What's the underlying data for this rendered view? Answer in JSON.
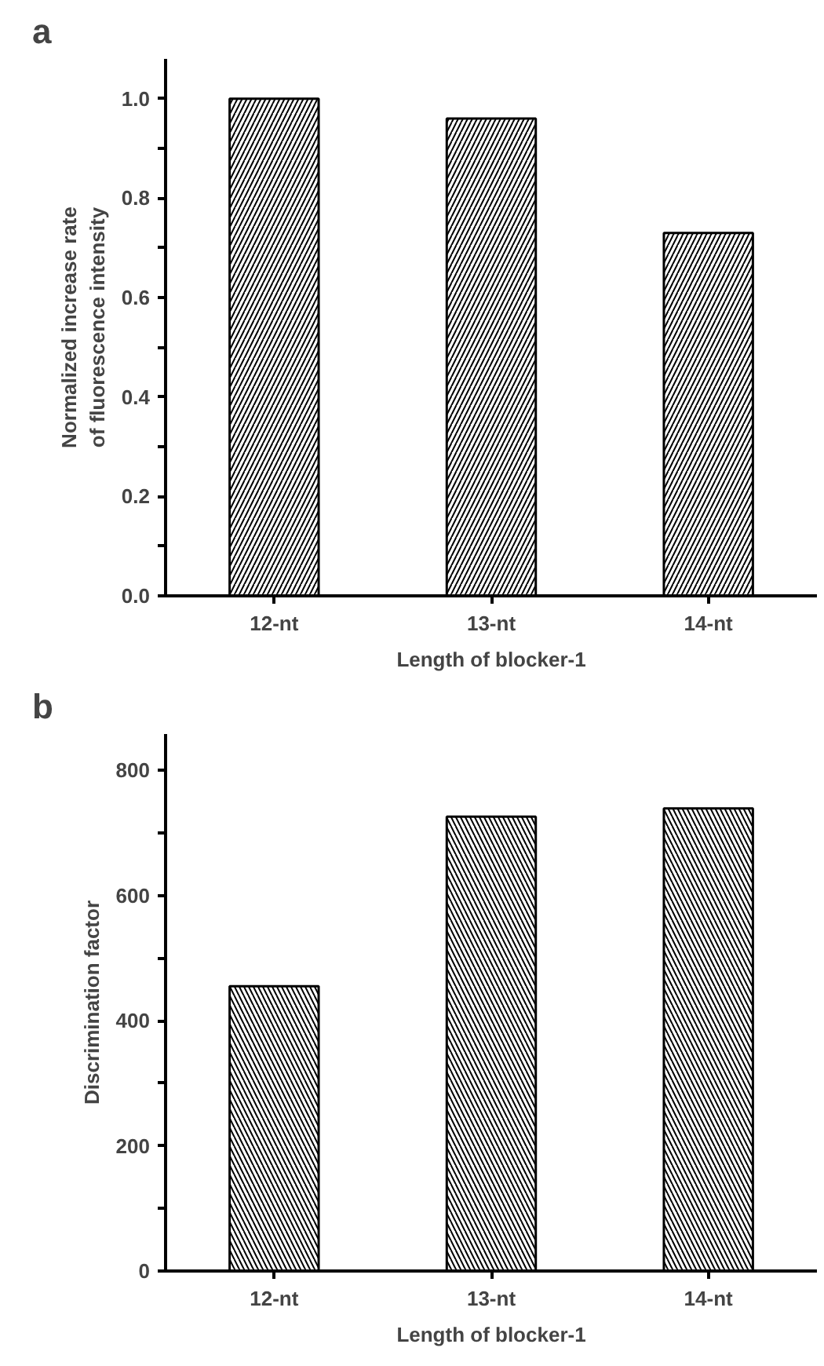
{
  "chart_data": [
    {
      "type": "bar",
      "title": "a",
      "xlabel": "Length of blocker-1",
      "ylabel": "Normalized increase rate\nof fluorescence intensity",
      "categories": [
        "12-nt",
        "13-nt",
        "14-nt"
      ],
      "values": [
        1.0,
        0.96,
        0.73
      ],
      "ylim": [
        0,
        1.08
      ],
      "yticks": [
        {
          "value": 0,
          "label": "0.0"
        },
        {
          "value": 0.1,
          "label": null
        },
        {
          "value": 0.2,
          "label": "0.2"
        },
        {
          "value": 0.3,
          "label": null
        },
        {
          "value": 0.4,
          "label": "0.4"
        },
        {
          "value": 0.5,
          "label": null
        },
        {
          "value": 0.6,
          "label": "0.6"
        },
        {
          "value": 0.7,
          "label": null
        },
        {
          "value": 0.8,
          "label": "0.8"
        },
        {
          "value": 0.9,
          "label": null
        },
        {
          "value": 1.0,
          "label": "1.0"
        }
      ],
      "grid": false
    },
    {
      "type": "bar",
      "title": "b",
      "xlabel": "Length of blocker-1",
      "ylabel": "Discrimination factor",
      "categories": [
        "12-nt",
        "13-nt",
        "14-nt"
      ],
      "values": [
        455,
        726,
        739
      ],
      "ylim": [
        0,
        858
      ],
      "yticks": [
        0,
        {
          "value": 100,
          "label": null
        },
        200,
        {
          "value": 300,
          "label": null
        },
        400,
        {
          "value": 500,
          "label": null
        },
        600,
        {
          "value": 700,
          "label": null
        },
        800
      ],
      "grid": false
    }
  ]
}
